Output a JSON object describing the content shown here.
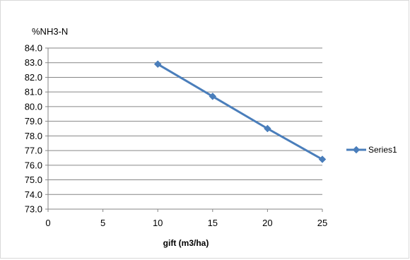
{
  "chart_data": {
    "type": "line",
    "title": "",
    "ylabel": "%NH3-N",
    "xlabel": "gift (m3/ha)",
    "xlim": [
      0,
      25
    ],
    "ylim": [
      73.0,
      84.0
    ],
    "x_ticks": [
      "0",
      "5",
      "10",
      "15",
      "20",
      "25"
    ],
    "y_ticks": [
      "73.0",
      "74.0",
      "75.0",
      "76.0",
      "77.0",
      "78.0",
      "79.0",
      "80.0",
      "81.0",
      "82.0",
      "83.0",
      "84.0"
    ],
    "grid": true,
    "legend_position": "right",
    "series": [
      {
        "name": "Series1",
        "color": "#4a7ebb",
        "marker": "diamond",
        "x": [
          10,
          15,
          20,
          25
        ],
        "y": [
          82.9,
          80.7,
          78.5,
          76.4
        ]
      }
    ]
  }
}
